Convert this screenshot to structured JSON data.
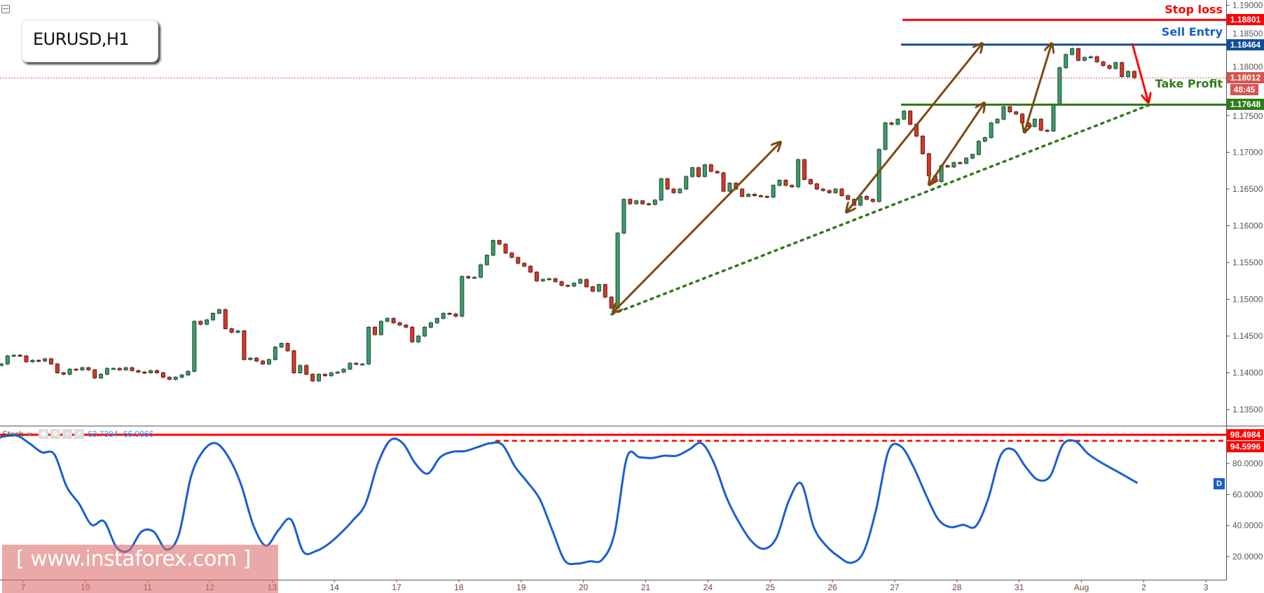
{
  "symbol_label": "EURUSD,H1",
  "colors": {
    "bull": "#3d9b6c",
    "bull_border": "#1e4a30",
    "bear": "#d6392b",
    "bear_border": "#5c1a12",
    "stop_loss": "#ff0000",
    "sell_entry": "#0f4f98",
    "take_profit": "#2f7a1a",
    "current": "#d9534f",
    "stoch_line": "#1a5fd0",
    "projection_arrow": "#7b4a12",
    "trendline": "#2f7a1a"
  },
  "levels": {
    "stop_loss": {
      "label": "Stop loss",
      "price": 1.18801,
      "value": "1.18801"
    },
    "sell_entry": {
      "label": "Sell Entry",
      "price": 1.18464,
      "value": "1.18464"
    },
    "take_profit": {
      "label": "Take Profit",
      "price": 1.17648,
      "value": "1.17648"
    },
    "current": {
      "price": 1.18012,
      "value": "1.18012",
      "countdown": "48:45"
    }
  },
  "price_axis": {
    "ticks": [
      "1.19000",
      "1.18500",
      "1.18000",
      "1.17500",
      "1.17000",
      "1.16500",
      "1.16000",
      "1.15500",
      "1.15000",
      "1.14500",
      "1.14000",
      "1.13500"
    ]
  },
  "x_axis": {
    "labels": [
      "7",
      "10",
      "11",
      "12",
      "13",
      "14",
      "17",
      "18",
      "19",
      "20",
      "21",
      "24",
      "25",
      "26",
      "27",
      "28",
      "31",
      "Aug",
      "2",
      "3"
    ]
  },
  "stoch": {
    "name": "Stoch",
    "k_value": "63.7384",
    "d_value": "66.9066",
    "badge": "D",
    "ticks": [
      "80.0000",
      "60.0000",
      "40.0000",
      "20.0000"
    ],
    "levels": [
      {
        "value": "98.4984",
        "style": "solid"
      },
      {
        "value": "94.5996",
        "style": "dashed"
      }
    ]
  },
  "watermark": "[  www.instaforex.com ]",
  "chart_data": [
    {
      "type": "candlestick",
      "title": "EURUSD,H1",
      "ylim": [
        1.133,
        1.1905
      ],
      "candles_by_day": [
        {
          "day": null,
          "closes": [
            1.1412,
            1.1423,
            1.1424,
            1.1423
          ]
        },
        {
          "day": "7",
          "closes": [
            1.1415,
            1.1417,
            1.1416,
            1.1419,
            1.1412,
            1.14,
            1.1398,
            1.1405,
            1.1404,
            1.1407
          ]
        },
        {
          "day": "10",
          "closes": [
            1.1404,
            1.1393,
            1.1398,
            1.1406,
            1.1406,
            1.1404,
            1.1407,
            1.1403,
            1.1401,
            1.14
          ]
        },
        {
          "day": "11",
          "closes": [
            1.1403,
            1.14,
            1.1394,
            1.1391,
            1.1394,
            1.1397,
            1.1402,
            1.147,
            1.1466,
            1.1472
          ]
        },
        {
          "day": "12",
          "closes": [
            1.1481,
            1.1486,
            1.146,
            1.1455,
            1.1457,
            1.1418,
            1.142,
            1.1416,
            1.1412,
            1.1418
          ]
        },
        {
          "day": "13",
          "closes": [
            1.1435,
            1.144,
            1.143,
            1.14,
            1.141,
            1.1398,
            1.1389,
            1.1398,
            1.1396,
            1.14
          ]
        },
        {
          "day": "14",
          "closes": [
            1.1401,
            1.1405,
            1.1413,
            1.1412,
            1.1412,
            1.1462,
            1.1452,
            1.147,
            1.1474,
            1.1468
          ]
        },
        {
          "day": "17",
          "closes": [
            1.1465,
            1.1462,
            1.1442,
            1.145,
            1.1462,
            1.1468,
            1.1474,
            1.1481,
            1.148,
            1.1477
          ]
        },
        {
          "day": "18",
          "closes": [
            1.1531,
            1.1529,
            1.153,
            1.1547,
            1.156,
            1.158,
            1.1575,
            1.1563,
            1.1557,
            1.1549
          ]
        },
        {
          "day": "19",
          "closes": [
            1.1545,
            1.1537,
            1.1525,
            1.1527,
            1.1528,
            1.1524,
            1.1519,
            1.1518,
            1.1522,
            1.1527
          ]
        },
        {
          "day": "20",
          "closes": [
            1.1517,
            1.1511,
            1.152,
            1.1503,
            1.1488,
            1.159,
            1.1636,
            1.163,
            1.1634,
            1.163
          ]
        },
        {
          "day": "21",
          "closes": [
            1.1629,
            1.1635,
            1.1664,
            1.165,
            1.1645,
            1.165,
            1.1667,
            1.1679,
            1.1667,
            1.1683
          ]
        },
        {
          "day": "24",
          "closes": [
            1.1674,
            1.1672,
            1.1647,
            1.1658,
            1.165,
            1.164,
            1.1643,
            1.1641,
            1.164,
            1.1639
          ]
        },
        {
          "day": "25",
          "closes": [
            1.1655,
            1.1662,
            1.1655,
            1.1653,
            1.169,
            1.1663,
            1.1657,
            1.165,
            1.1648,
            1.1645
          ]
        },
        {
          "day": "26",
          "closes": [
            1.165,
            1.1641,
            1.1636,
            1.1628,
            1.164,
            1.1636,
            1.1633,
            1.1704,
            1.174,
            1.1738
          ]
        },
        {
          "day": "27",
          "closes": [
            1.1745,
            1.1756,
            1.1738,
            1.1722,
            1.1698,
            1.1668,
            1.166,
            1.1682,
            1.168,
            1.1686
          ]
        },
        {
          "day": "28",
          "closes": [
            1.1685,
            1.1692,
            1.1697,
            1.1715,
            1.172,
            1.174,
            1.1745,
            1.1762,
            1.1755,
            1.1752
          ]
        },
        {
          "day": "31",
          "closes": [
            1.174,
            1.1735,
            1.1745,
            1.173,
            1.1729,
            1.1765,
            1.1815,
            1.1833,
            1.1841,
            1.1825
          ]
        },
        {
          "day": "Aug",
          "closes": [
            1.1829,
            1.183,
            1.1823,
            1.1818,
            1.1814,
            1.1822,
            1.1803,
            1.181,
            1.18012
          ]
        }
      ]
    },
    {
      "type": "line",
      "title": "Stoch",
      "ylim": [
        0,
        100
      ],
      "values_by_day": [
        {
          "day": null,
          "values": [
            97.5,
            98.0
          ]
        },
        {
          "day": "7",
          "values": [
            93,
            87.2,
            86,
            65,
            54
          ]
        },
        {
          "day": "10",
          "values": [
            40.5,
            42.7,
            26,
            24,
            36
          ]
        },
        {
          "day": "11",
          "values": [
            36,
            24.5,
            34,
            72,
            88.5
          ]
        },
        {
          "day": "12",
          "values": [
            93,
            84,
            66.5,
            40,
            27
          ]
        },
        {
          "day": "13",
          "values": [
            37,
            44,
            23.2,
            23.5,
            28
          ]
        },
        {
          "day": "14",
          "values": [
            35,
            43.5,
            54,
            80,
            95
          ]
        },
        {
          "day": "17",
          "values": [
            93,
            80,
            73.5,
            84,
            87.5
          ]
        },
        {
          "day": "18",
          "values": [
            88,
            90.5,
            93,
            92,
            78
          ]
        },
        {
          "day": "19",
          "values": [
            68,
            57,
            37,
            17.5,
            15.5
          ]
        },
        {
          "day": "20",
          "values": [
            17,
            18,
            35,
            84,
            84
          ]
        },
        {
          "day": "21",
          "values": [
            83.5,
            85,
            85,
            89,
            93
          ]
        },
        {
          "day": "24",
          "values": [
            80,
            58,
            42,
            30,
            25
          ]
        },
        {
          "day": "25",
          "values": [
            32,
            56,
            67,
            39,
            27
          ]
        },
        {
          "day": "26",
          "values": [
            20,
            16,
            23,
            50,
            88
          ]
        },
        {
          "day": "27",
          "values": [
            91,
            78,
            60,
            44,
            39
          ]
        },
        {
          "day": "28",
          "values": [
            40.5,
            39.5,
            57,
            85,
            89
          ]
        },
        {
          "day": "31",
          "values": [
            78,
            69.5,
            72,
            92,
            94.4
          ]
        },
        {
          "day": "Aug",
          "values": [
            86.5,
            81,
            76.5,
            72,
            67.4
          ]
        }
      ]
    }
  ]
}
